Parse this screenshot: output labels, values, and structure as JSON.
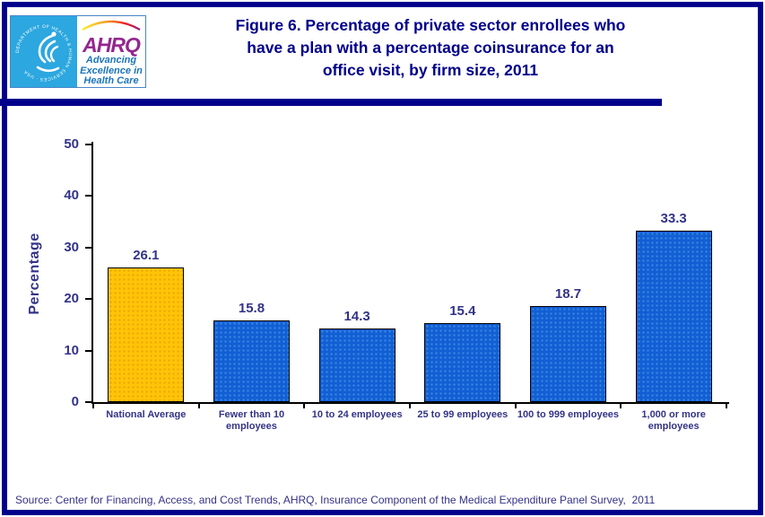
{
  "logo": {
    "acronym": "AHRQ",
    "tagline_lines": [
      "Advancing",
      "Excellence in",
      "Health Care"
    ],
    "seal_text": "DEPARTMENT OF HEALTH & HUMAN SERVICES · USA"
  },
  "title_lines": [
    "Figure 6. Percentage of private sector enrollees who",
    "have a plan with a percentage coinsurance for an",
    "office visit, by firm size, 2011"
  ],
  "source": "Source: Center for Financing, Access, and Cost Trends, AHRQ, Insurance Component of the Medical Expenditure Panel Survey,  2011",
  "colors": {
    "navy": "#00008B",
    "text_navy": "#333388",
    "bar_blue": "#115FD3",
    "bar_gold": "#FFC408",
    "hhs_blue": "#2CA7DF",
    "ahrq_purple": "#93278F",
    "tagline_blue": "#1C75BB",
    "axis_black": "#000000"
  },
  "chart_data": {
    "type": "bar",
    "title": "Figure 6. Percentage of private sector enrollees who have a plan with a percentage coinsurance for an office visit, by firm size, 2011",
    "categories": [
      "National Average",
      "Fewer than 10 employees",
      "10 to 24 employees",
      "25 to 99 employees",
      "100 to 999 employees",
      "1,000 or more employees"
    ],
    "category_lines": [
      [
        "National Average"
      ],
      [
        "Fewer than 10",
        "employees"
      ],
      [
        "10 to 24 employees"
      ],
      [
        "25 to 99 employees"
      ],
      [
        "100 to 999 employees"
      ],
      [
        "1,000 or more",
        "employees"
      ]
    ],
    "values": [
      26.1,
      15.8,
      14.3,
      15.4,
      18.7,
      33.3
    ],
    "value_labels": [
      "26.1",
      "15.8",
      "14.3",
      "15.4",
      "18.7",
      "33.3"
    ],
    "bar_colors": [
      "#FFC408",
      "#115FD3",
      "#115FD3",
      "#115FD3",
      "#115FD3",
      "#115FD3"
    ],
    "xlabel": "",
    "ylabel": "Percentage",
    "ylim": [
      0,
      50
    ],
    "yticks": [
      0,
      10,
      20,
      30,
      40,
      50
    ],
    "grid": false,
    "legend": "none"
  }
}
